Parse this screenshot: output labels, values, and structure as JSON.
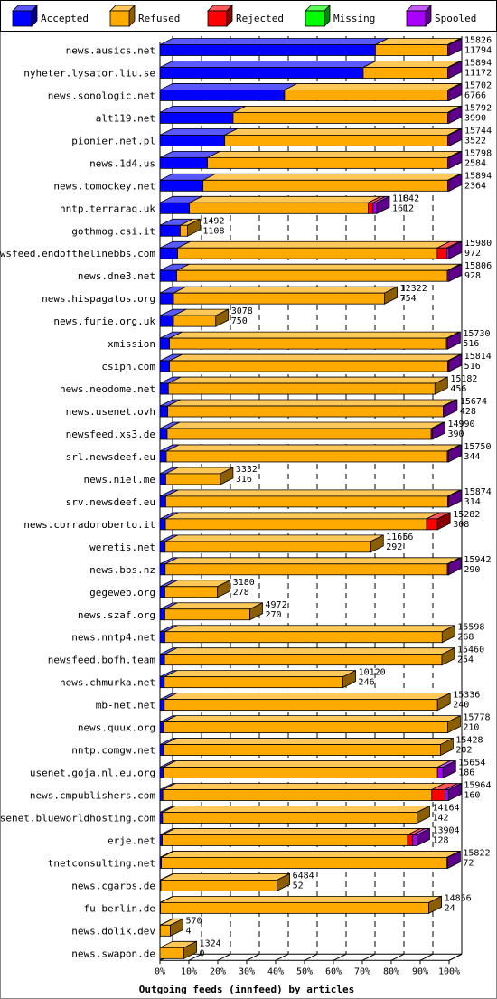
{
  "chart_data": {
    "type": "bar",
    "orientation": "horizontal",
    "stacked": true,
    "title": "",
    "xlabel": "Outgoing feeds (innfeed) by articles",
    "ylabel": "",
    "xlim": [
      0,
      100
    ],
    "x_ticks": [
      "0%",
      "10%",
      "20%",
      "30%",
      "40%",
      "50%",
      "60%",
      "70%",
      "80%",
      "90%",
      "100%"
    ],
    "grid": true,
    "legend_position": "top",
    "series": [
      {
        "name": "Accepted",
        "color": "#0000ff"
      },
      {
        "name": "Refused",
        "color": "#ffaa00"
      },
      {
        "name": "Rejected",
        "color": "#ff0000"
      },
      {
        "name": "Missing",
        "color": "#00ff00"
      },
      {
        "name": "Spooled",
        "color": "#aa00ff"
      }
    ],
    "rows": [
      {
        "label": "news.ausics.net",
        "total": "15826",
        "accepted_label": "11794",
        "pct": [
          74.5,
          25.0,
          0,
          0,
          0.5
        ]
      },
      {
        "label": "nyheter.lysator.liu.se",
        "total": "15894",
        "accepted_label": "11172",
        "pct": [
          70.3,
          29.2,
          0,
          0,
          0.5
        ]
      },
      {
        "label": "news.sonologic.net",
        "total": "15702",
        "accepted_label": "6766",
        "pct": [
          43.1,
          56.4,
          0,
          0,
          0.5
        ]
      },
      {
        "label": "alt119.net",
        "total": "15792",
        "accepted_label": "3990",
        "pct": [
          25.3,
          74.2,
          0,
          0,
          0.5
        ]
      },
      {
        "label": "pionier.net.pl",
        "total": "15744",
        "accepted_label": "3522",
        "pct": [
          22.4,
          77.1,
          0,
          0,
          0.5
        ]
      },
      {
        "label": "news.1d4.us",
        "total": "15798",
        "accepted_label": "2584",
        "pct": [
          16.4,
          83.1,
          0,
          0,
          0.5
        ]
      },
      {
        "label": "news.tomockey.net",
        "total": "15894",
        "accepted_label": "2364",
        "pct": [
          14.9,
          84.6,
          0,
          0,
          0.5
        ]
      },
      {
        "label": "nntp.terraraq.uk",
        "total": "11842",
        "accepted_label": "1612",
        "pct": [
          10.2,
          61.8,
          1.7,
          0,
          1.3
        ]
      },
      {
        "label": "gothmog.csi.it",
        "total": "1492",
        "accepted_label": "1108",
        "pct": [
          7.0,
          2.5,
          0,
          0,
          0
        ]
      },
      {
        "label": "newsfeed.endofthelinebbs.com",
        "total": "15980",
        "accepted_label": "972",
        "pct": [
          6.1,
          89.8,
          3.3,
          0,
          0.8
        ]
      },
      {
        "label": "news.dne3.net",
        "total": "15806",
        "accepted_label": "928",
        "pct": [
          5.8,
          93.6,
          0,
          0,
          0.6
        ]
      },
      {
        "label": "news.hispagatos.org",
        "total": "12322",
        "accepted_label": "754",
        "pct": [
          4.7,
          73.0,
          0,
          0,
          0
        ]
      },
      {
        "label": "news.furie.org.uk",
        "total": "3078",
        "accepted_label": "750",
        "pct": [
          4.7,
          14.6,
          0,
          0,
          0
        ]
      },
      {
        "label": "xmission",
        "total": "15730",
        "accepted_label": "516",
        "pct": [
          3.3,
          95.8,
          0,
          0,
          0.4
        ]
      },
      {
        "label": "csiph.com",
        "total": "15814",
        "accepted_label": "516",
        "pct": [
          3.3,
          96.2,
          0,
          0,
          0.4
        ]
      },
      {
        "label": "news.neodome.net",
        "total": "15182",
        "accepted_label": "456",
        "pct": [
          2.9,
          92.2,
          0,
          0,
          0
        ]
      },
      {
        "label": "news.usenet.ovh",
        "total": "15674",
        "accepted_label": "428",
        "pct": [
          2.7,
          95.3,
          0,
          0,
          0.4
        ]
      },
      {
        "label": "newsfeed.xs3.de",
        "total": "14990",
        "accepted_label": "390",
        "pct": [
          2.5,
          91.3,
          0,
          0,
          0.4
        ]
      },
      {
        "label": "srl.newsdeef.eu",
        "total": "15750",
        "accepted_label": "344",
        "pct": [
          2.2,
          97.2,
          0,
          0,
          0.4
        ]
      },
      {
        "label": "news.niel.me",
        "total": "3332",
        "accepted_label": "316",
        "pct": [
          2.0,
          18.9,
          0,
          0,
          0
        ]
      },
      {
        "label": "srv.newsdeef.eu",
        "total": "15874",
        "accepted_label": "314",
        "pct": [
          2.0,
          97.5,
          0,
          0,
          0.4
        ]
      },
      {
        "label": "news.corradoroberto.it",
        "total": "15282",
        "accepted_label": "308",
        "pct": [
          1.9,
          90.3,
          3.8,
          0,
          0
        ]
      },
      {
        "label": "weretis.net",
        "total": "11656",
        "accepted_label": "292",
        "pct": [
          1.8,
          71.1,
          0,
          0,
          0
        ]
      },
      {
        "label": "news.bbs.nz",
        "total": "15942",
        "accepted_label": "290",
        "pct": [
          1.8,
          97.6,
          0,
          0,
          0.4
        ]
      },
      {
        "label": "gegeweb.org",
        "total": "3180",
        "accepted_label": "278",
        "pct": [
          1.7,
          18.2,
          0,
          0,
          0
        ]
      },
      {
        "label": "news.szaf.org",
        "total": "4972",
        "accepted_label": "270",
        "pct": [
          1.7,
          29.4,
          0,
          0,
          0
        ]
      },
      {
        "label": "news.nntp4.net",
        "total": "15598",
        "accepted_label": "268",
        "pct": [
          1.7,
          95.9,
          0,
          0,
          0
        ]
      },
      {
        "label": "newsfeed.bofh.team",
        "total": "15460",
        "accepted_label": "254",
        "pct": [
          1.6,
          95.9,
          0,
          0,
          0
        ]
      },
      {
        "label": "news.chmurka.net",
        "total": "10120",
        "accepted_label": "246",
        "pct": [
          1.5,
          61.8,
          0,
          0,
          0
        ]
      },
      {
        "label": "mb-net.net",
        "total": "15336",
        "accepted_label": "240",
        "pct": [
          1.5,
          94.5,
          0,
          0,
          0
        ]
      },
      {
        "label": "news.quux.org",
        "total": "15778",
        "accepted_label": "210",
        "pct": [
          1.3,
          98.2,
          0,
          0,
          0
        ]
      },
      {
        "label": "nntp.comgw.net",
        "total": "15428",
        "accepted_label": "202",
        "pct": [
          1.3,
          95.7,
          0,
          0,
          0
        ]
      },
      {
        "label": "usenet.goja.nl.eu.org",
        "total": "15654",
        "accepted_label": "186",
        "pct": [
          1.2,
          94.8,
          0,
          0,
          1.9
        ]
      },
      {
        "label": "news.cmpublishers.com",
        "total": "15964",
        "accepted_label": "160",
        "pct": [
          1.0,
          93.0,
          4.6,
          0,
          1.2
        ]
      },
      {
        "label": "usenet.blueworldhosting.com",
        "total": "14164",
        "accepted_label": "142",
        "pct": [
          0.9,
          88.0,
          0,
          0,
          0
        ]
      },
      {
        "label": "erje.net",
        "total": "13904",
        "accepted_label": "128",
        "pct": [
          0.8,
          84.8,
          1.8,
          0,
          1.5
        ]
      },
      {
        "label": "tnetconsulting.net",
        "total": "15822",
        "accepted_label": "72",
        "pct": [
          0.5,
          98.8,
          0,
          0,
          0.2
        ]
      },
      {
        "label": "news.cgarbs.de",
        "total": "6484",
        "accepted_label": "52",
        "pct": [
          0.3,
          40.2,
          0,
          0,
          0
        ]
      },
      {
        "label": "fu-berlin.de",
        "total": "14856",
        "accepted_label": "24",
        "pct": [
          0.2,
          92.8,
          0,
          0,
          0
        ]
      },
      {
        "label": "news.dolik.dev",
        "total": "570",
        "accepted_label": "4",
        "pct": [
          0.1,
          3.5,
          0,
          0,
          0
        ]
      },
      {
        "label": "news.swapon.de",
        "total": "1324",
        "accepted_label": "0",
        "pct": [
          0,
          8.3,
          0,
          0,
          0
        ]
      }
    ]
  }
}
